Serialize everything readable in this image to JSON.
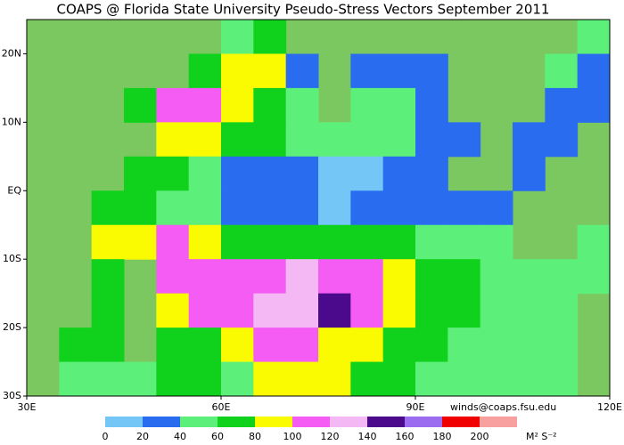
{
  "chart_data": {
    "type": "heatmap",
    "title": "COAPS @ Florida State University Pseudo-Stress Vectors September 2011",
    "credit": "winds@coaps.fsu.edu",
    "unit": "M² S⁻²",
    "xlim": [
      30,
      120
    ],
    "ylim": [
      -30,
      25
    ],
    "xticks": [
      {
        "value": 30,
        "label": "30E"
      },
      {
        "value": 60,
        "label": "60E"
      },
      {
        "value": 90,
        "label": "90E"
      },
      {
        "value": 120,
        "label": "120E"
      }
    ],
    "yticks": [
      {
        "value": -30,
        "label": "30S"
      },
      {
        "value": -20,
        "label": "20S"
      },
      {
        "value": -10,
        "label": "10S"
      },
      {
        "value": 0,
        "label": "EQ"
      },
      {
        "value": 10,
        "label": "10N"
      },
      {
        "value": 20,
        "label": "20N"
      }
    ],
    "land_color": "#7cc860",
    "colorbar": {
      "levels": [
        0,
        20,
        40,
        60,
        80,
        100,
        120,
        140,
        160,
        180,
        200
      ],
      "colors": [
        "#74c6f6",
        "#2a6cf0",
        "#5cf07a",
        "#10d21c",
        "#fafa00",
        "#f45cf4",
        "#f4b8f4",
        "#4b0a8c",
        "#9b6cf0",
        "#f00000",
        "#f8a0a0"
      ]
    },
    "field": [
      [
        null,
        null,
        null,
        null,
        null,
        null,
        50,
        70,
        null,
        null,
        null,
        null,
        null,
        null,
        null,
        null,
        null,
        50
      ],
      [
        null,
        null,
        null,
        null,
        null,
        70,
        90,
        80,
        30,
        null,
        30,
        30,
        30,
        null,
        null,
        null,
        50,
        30
      ],
      [
        null,
        null,
        null,
        70,
        110,
        110,
        90,
        70,
        50,
        null,
        50,
        50,
        30,
        null,
        null,
        null,
        30,
        30
      ],
      [
        null,
        null,
        null,
        null,
        90,
        90,
        70,
        70,
        50,
        50,
        50,
        50,
        30,
        30,
        null,
        30,
        30,
        null
      ],
      [
        null,
        null,
        null,
        70,
        70,
        50,
        30,
        30,
        30,
        10,
        10,
        30,
        30,
        null,
        null,
        30,
        null,
        null
      ],
      [
        null,
        null,
        70,
        70,
        50,
        50,
        30,
        30,
        30,
        10,
        30,
        30,
        30,
        30,
        30,
        null,
        null,
        null
      ],
      [
        null,
        null,
        90,
        90,
        110,
        90,
        70,
        70,
        70,
        70,
        70,
        70,
        50,
        50,
        50,
        null,
        null,
        50
      ],
      [
        null,
        null,
        70,
        null,
        110,
        110,
        110,
        110,
        130,
        110,
        110,
        90,
        70,
        70,
        50,
        50,
        50,
        50
      ],
      [
        null,
        null,
        70,
        null,
        90,
        110,
        110,
        130,
        130,
        150,
        110,
        90,
        70,
        70,
        50,
        50,
        50,
        null
      ],
      [
        null,
        70,
        70,
        null,
        70,
        70,
        90,
        110,
        110,
        90,
        90,
        70,
        70,
        50,
        50,
        50,
        50,
        null
      ],
      [
        null,
        50,
        50,
        50,
        70,
        70,
        50,
        90,
        90,
        90,
        70,
        70,
        50,
        50,
        50,
        50,
        50,
        null
      ]
    ]
  }
}
